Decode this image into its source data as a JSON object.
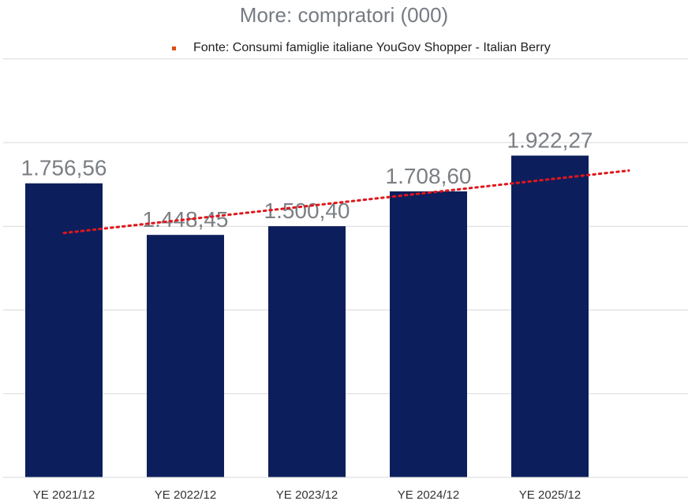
{
  "chart_data": {
    "type": "bar",
    "title": "More: compratori (000)",
    "categories": [
      "YE 2021/12",
      "YE 2022/12",
      "YE 2023/12",
      "YE 2024/12",
      "YE 2025/12"
    ],
    "series": [
      {
        "values": [
          1756.56,
          1448.45,
          1500.4,
          1708.6,
          1922.27
        ],
        "color": "#0c1f5c"
      }
    ],
    "data_labels": [
      "1.756,56",
      "1.448,45",
      "1.500,40",
      "1.708,60",
      "1.922,27"
    ],
    "legend": {
      "label": "Fonte: Consumi famiglie italiane YouGov Shopper - Italian Berry",
      "marker_color": "#e24b12",
      "placement": "top"
    },
    "trendline": {
      "type": "linear",
      "style": "dotted",
      "color": "#e0161c",
      "start": 1460,
      "end": 1833
    },
    "ylim": [
      0,
      2500
    ],
    "grid": true,
    "xlabel": "",
    "ylabel": ""
  }
}
